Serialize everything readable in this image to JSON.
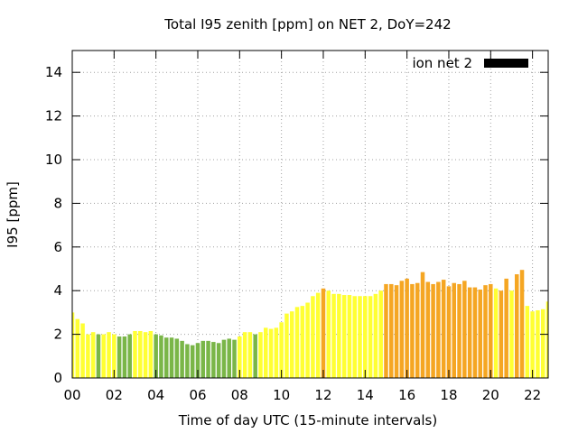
{
  "chart_data": {
    "type": "bar",
    "title": "Total I95 zenith [ppm] on NET 2, DoY=242",
    "xlabel": "Time of day UTC (15-minute intervals)",
    "ylabel": "I95 [ppm]",
    "xlim": [
      0,
      22.75
    ],
    "ylim": [
      0,
      15
    ],
    "x_ticks": [
      "00",
      "02",
      "04",
      "06",
      "08",
      "10",
      "12",
      "14",
      "16",
      "18",
      "20",
      "22"
    ],
    "y_ticks": [
      "0",
      "2",
      "4",
      "6",
      "8",
      "10",
      "12",
      "14"
    ],
    "grid": true,
    "legend": {
      "position": "top-right",
      "label": "ion net 2",
      "color": "#000000"
    },
    "colors": {
      "green": "#7ab648",
      "yellow": "#ffff33",
      "orange": "#f5a623"
    },
    "interval_hours": 0.25,
    "values": [
      3.0,
      2.7,
      2.5,
      2.0,
      2.1,
      2.0,
      2.0,
      2.1,
      2.0,
      1.9,
      1.9,
      2.0,
      2.15,
      2.15,
      2.1,
      2.15,
      2.0,
      1.95,
      1.85,
      1.85,
      1.8,
      1.7,
      1.55,
      1.5,
      1.6,
      1.7,
      1.7,
      1.65,
      1.6,
      1.75,
      1.8,
      1.75,
      1.9,
      2.1,
      2.1,
      2.0,
      2.1,
      2.3,
      2.25,
      2.3,
      2.55,
      2.95,
      3.05,
      3.25,
      3.3,
      3.45,
      3.75,
      3.9,
      4.1,
      4.0,
      3.85,
      3.85,
      3.8,
      3.8,
      3.75,
      3.75,
      3.75,
      3.75,
      3.85,
      4.0,
      4.3,
      4.3,
      4.25,
      4.45,
      4.55,
      4.3,
      4.35,
      4.85,
      4.4,
      4.3,
      4.4,
      4.5,
      4.2,
      4.35,
      4.3,
      4.45,
      4.15,
      4.15,
      4.05,
      4.25,
      4.3,
      4.1,
      4.0,
      4.55,
      4.0,
      4.75,
      4.95,
      3.3,
      3.05,
      3.1,
      3.15,
      3.5
    ],
    "bar_colors": [
      "yellow",
      "yellow",
      "yellow",
      "yellow",
      "yellow",
      "green",
      "yellow",
      "yellow",
      "yellow",
      "green",
      "green",
      "green",
      "yellow",
      "yellow",
      "yellow",
      "yellow",
      "green",
      "green",
      "green",
      "green",
      "green",
      "green",
      "green",
      "green",
      "green",
      "green",
      "green",
      "green",
      "green",
      "green",
      "green",
      "green",
      "yellow",
      "yellow",
      "yellow",
      "green",
      "yellow",
      "yellow",
      "yellow",
      "yellow",
      "yellow",
      "yellow",
      "yellow",
      "yellow",
      "yellow",
      "yellow",
      "yellow",
      "yellow",
      "orange",
      "yellow",
      "yellow",
      "yellow",
      "yellow",
      "yellow",
      "yellow",
      "yellow",
      "yellow",
      "yellow",
      "yellow",
      "yellow",
      "orange",
      "orange",
      "orange",
      "orange",
      "orange",
      "orange",
      "orange",
      "orange",
      "orange",
      "orange",
      "orange",
      "orange",
      "orange",
      "orange",
      "orange",
      "orange",
      "orange",
      "orange",
      "orange",
      "orange",
      "orange",
      "yellow",
      "orange",
      "orange",
      "yellow",
      "orange",
      "orange",
      "yellow",
      "yellow",
      "yellow",
      "yellow",
      "yellow"
    ]
  }
}
